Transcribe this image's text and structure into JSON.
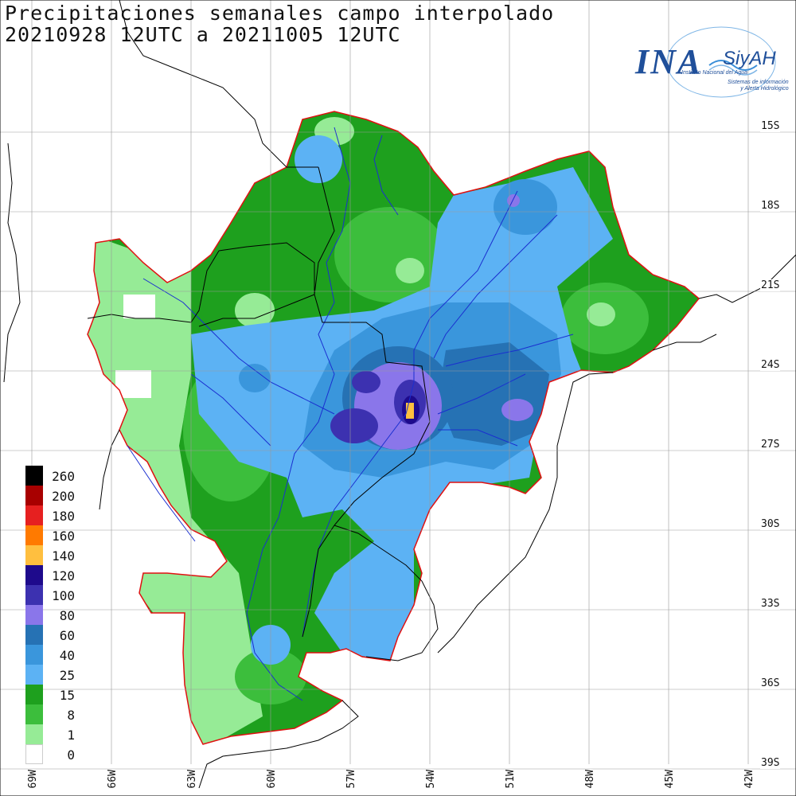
{
  "title": {
    "line1": "Precipitaciones semanales campo interpolado",
    "line2": "20210928 12UTC a 20211005 12UTC"
  },
  "logo": {
    "name": "INA",
    "product": "SiyAH",
    "subtitle": "Instituto Nacional del Agua",
    "tagline_1": "Sistemas de información",
    "tagline_2": "y Alerta Hidrológico"
  },
  "legend": {
    "items": [
      {
        "label": "260",
        "color": "#000000"
      },
      {
        "label": "200",
        "color": "#a80000"
      },
      {
        "label": "180",
        "color": "#e62020"
      },
      {
        "label": "160",
        "color": "#ff7a00"
      },
      {
        "label": "140",
        "color": "#ffbf3f"
      },
      {
        "label": "120",
        "color": "#1e0a8c"
      },
      {
        "label": "100",
        "color": "#3c31b0"
      },
      {
        "label": "80",
        "color": "#8a76ea"
      },
      {
        "label": "60",
        "color": "#2672b4"
      },
      {
        "label": "40",
        "color": "#3a96dc"
      },
      {
        "label": "25",
        "color": "#5cb2f4"
      },
      {
        "label": "15",
        "color": "#1ea01e"
      },
      {
        "label": "8",
        "color": "#3cbe3c"
      },
      {
        "label": "1",
        "color": "#96eb96"
      },
      {
        "label": "0",
        "color": "#ffffff"
      }
    ]
  },
  "grid": {
    "latitudes": [
      "15S",
      "18S",
      "21S",
      "24S",
      "27S",
      "30S",
      "33S",
      "36S",
      "39S"
    ],
    "longitudes": [
      "69W",
      "66W",
      "63W",
      "60W",
      "57W",
      "54W",
      "51W",
      "48W",
      "45W",
      "42W"
    ]
  },
  "colors": {
    "basin_outline": "#e01010",
    "rivers": "#1a2fd0",
    "borders": "#000000",
    "grid": "#999999"
  }
}
